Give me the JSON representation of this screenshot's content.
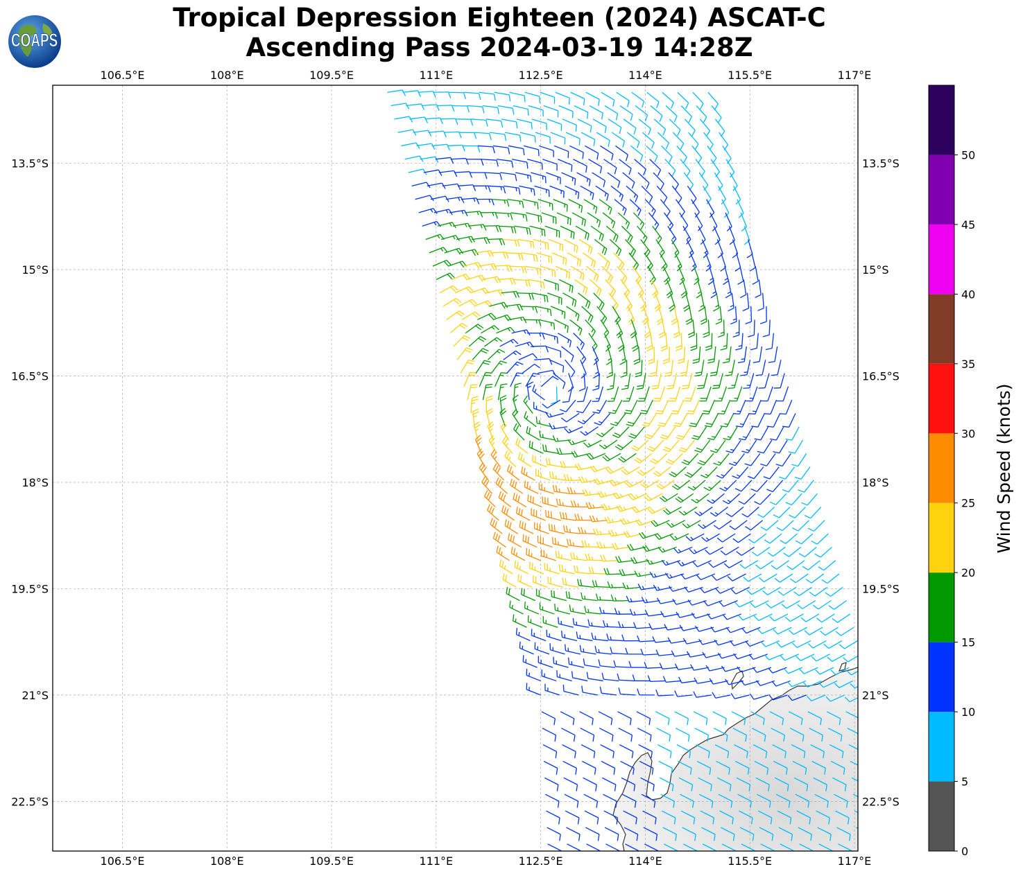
{
  "title": {
    "line1": "Tropical Depression Eighteen (2024) ASCAT-C",
    "line2": "Ascending Pass 2024-03-19 14:28Z"
  },
  "logo": {
    "text": "COAPS",
    "icon": "globe-icon"
  },
  "map": {
    "lon_range": [
      105.5,
      117.05
    ],
    "lat_range": [
      -23.2,
      -12.4
    ],
    "lon_ticks": [
      "106.5°E",
      "108°E",
      "109.5°E",
      "111°E",
      "112.5°E",
      "114°E",
      "115.5°E",
      "117°E"
    ],
    "lat_ticks": [
      "13.5°S",
      "15°S",
      "16.5°S",
      "18°S",
      "19.5°S",
      "21°S",
      "22.5°S"
    ],
    "gridlines": true,
    "features": [
      "wind-barbs",
      "coastline",
      "land-satellite-imagery"
    ]
  },
  "colorbar": {
    "label": "Wind Speed (knots)",
    "ticks": [
      "0",
      "5",
      "10",
      "15",
      "20",
      "25",
      "30",
      "35",
      "40",
      "45",
      "50"
    ],
    "bands": [
      {
        "range": [
          0,
          5
        ],
        "color": "#555555"
      },
      {
        "range": [
          5,
          10
        ],
        "color": "#00bbff"
      },
      {
        "range": [
          10,
          15
        ],
        "color": "#0033ff"
      },
      {
        "range": [
          15,
          20
        ],
        "color": "#009900"
      },
      {
        "range": [
          20,
          25
        ],
        "color": "#ffd20f"
      },
      {
        "range": [
          25,
          30
        ],
        "color": "#ff8c00"
      },
      {
        "range": [
          30,
          35
        ],
        "color": "#ff1111"
      },
      {
        "range": [
          35,
          40
        ],
        "color": "#803c27"
      },
      {
        "range": [
          40,
          45
        ],
        "color": "#f000f0"
      },
      {
        "range": [
          45,
          50
        ],
        "color": "#8000b0"
      },
      {
        "range": [
          50,
          55
        ],
        "color": "#2d005e"
      }
    ]
  }
}
